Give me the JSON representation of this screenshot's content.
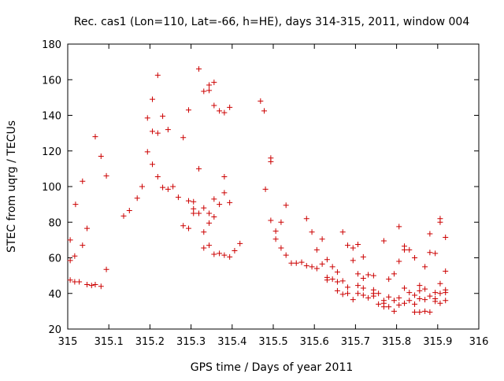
{
  "chart_data": {
    "type": "scatter",
    "title": "Rec. cas1 (Lon=110, Lat=-66, h=HE), days 314-315, 2011, window 004",
    "xlabel": "GPS time / Days of year 2011",
    "ylabel": "STEC from uqrg / TECUs",
    "xlim": [
      315,
      316
    ],
    "ylim": [
      20,
      180
    ],
    "xticks": [
      315,
      315.1,
      315.2,
      315.3,
      315.4,
      315.5,
      315.6,
      315.7,
      315.8,
      315.9,
      316
    ],
    "xtick_labels": [
      "315",
      "315.1",
      "315.2",
      "315.3",
      "315.4",
      "315.5",
      "315.6",
      "315.7",
      "315.8",
      "315.9",
      "316"
    ],
    "yticks": [
      20,
      40,
      60,
      80,
      100,
      120,
      140,
      160,
      180
    ],
    "ytick_labels": [
      "20",
      "40",
      "60",
      "80",
      "100",
      "120",
      "140",
      "160",
      "180"
    ],
    "grid": false,
    "marker": "plus",
    "marker_color": "#cc0000",
    "points": [
      [
        315.006,
        70
      ],
      [
        315.006,
        58.5
      ],
      [
        315.006,
        47.5
      ],
      [
        315.017,
        61
      ],
      [
        315.017,
        46.5
      ],
      [
        315.019,
        90
      ],
      [
        315.028,
        46.5
      ],
      [
        315.036,
        103
      ],
      [
        315.036,
        67
      ],
      [
        315.047,
        45
      ],
      [
        315.047,
        76.5
      ],
      [
        315.058,
        44.5
      ],
      [
        315.067,
        128
      ],
      [
        315.067,
        45
      ],
      [
        315.081,
        117
      ],
      [
        315.081,
        44
      ],
      [
        315.094,
        106
      ],
      [
        315.094,
        53.5
      ],
      [
        315.136,
        83.5
      ],
      [
        315.15,
        86.5
      ],
      [
        315.169,
        93.5
      ],
      [
        315.181,
        100
      ],
      [
        315.194,
        138.5
      ],
      [
        315.194,
        119.5
      ],
      [
        315.206,
        149
      ],
      [
        315.206,
        131
      ],
      [
        315.206,
        112.5
      ],
      [
        315.219,
        162.5
      ],
      [
        315.219,
        130
      ],
      [
        315.219,
        105.5
      ],
      [
        315.231,
        139.5
      ],
      [
        315.231,
        99.5
      ],
      [
        315.244,
        132
      ],
      [
        315.244,
        98.5
      ],
      [
        315.256,
        100
      ],
      [
        315.269,
        94
      ],
      [
        315.281,
        127.5
      ],
      [
        315.281,
        78
      ],
      [
        315.294,
        143
      ],
      [
        315.294,
        92
      ],
      [
        315.294,
        76.5
      ],
      [
        315.306,
        87.5
      ],
      [
        315.306,
        85
      ],
      [
        315.306,
        91.5
      ],
      [
        315.319,
        166
      ],
      [
        315.319,
        110
      ],
      [
        315.319,
        85
      ],
      [
        315.331,
        153.5
      ],
      [
        315.331,
        88
      ],
      [
        315.331,
        74.5
      ],
      [
        315.331,
        65.5
      ],
      [
        315.344,
        157
      ],
      [
        315.344,
        154
      ],
      [
        315.344,
        85
      ],
      [
        315.344,
        79.5
      ],
      [
        315.344,
        67
      ],
      [
        315.356,
        158.5
      ],
      [
        315.356,
        145.5
      ],
      [
        315.356,
        93
      ],
      [
        315.356,
        83
      ],
      [
        315.356,
        62
      ],
      [
        315.369,
        142.5
      ],
      [
        315.369,
        90
      ],
      [
        315.369,
        62.5
      ],
      [
        315.381,
        141.5
      ],
      [
        315.381,
        105.5
      ],
      [
        315.381,
        96.5
      ],
      [
        315.381,
        61.5
      ],
      [
        315.394,
        144.5
      ],
      [
        315.394,
        91
      ],
      [
        315.394,
        60.5
      ],
      [
        315.406,
        64
      ],
      [
        315.419,
        68
      ],
      [
        315.469,
        148
      ],
      [
        315.478,
        142.5
      ],
      [
        315.481,
        98.5
      ],
      [
        315.494,
        116
      ],
      [
        315.494,
        114
      ],
      [
        315.494,
        81
      ],
      [
        315.506,
        75
      ],
      [
        315.506,
        70.5
      ],
      [
        315.519,
        65.5
      ],
      [
        315.519,
        80
      ],
      [
        315.531,
        89.5
      ],
      [
        315.531,
        61.5
      ],
      [
        315.544,
        57
      ],
      [
        315.556,
        57
      ],
      [
        315.569,
        57.5
      ],
      [
        315.581,
        82
      ],
      [
        315.581,
        55.5
      ],
      [
        315.594,
        74.5
      ],
      [
        315.594,
        55
      ],
      [
        315.606,
        64.5
      ],
      [
        315.606,
        54
      ],
      [
        315.619,
        70.5
      ],
      [
        315.619,
        56.5
      ],
      [
        315.631,
        59
      ],
      [
        315.631,
        49
      ],
      [
        315.644,
        55
      ],
      [
        315.644,
        48
      ],
      [
        315.656,
        52
      ],
      [
        315.656,
        41.5
      ],
      [
        315.669,
        74.5
      ],
      [
        315.669,
        47
      ],
      [
        315.669,
        39.5
      ],
      [
        315.681,
        67
      ],
      [
        315.681,
        43.5
      ],
      [
        315.681,
        40
      ],
      [
        315.694,
        65.5
      ],
      [
        315.694,
        58.5
      ],
      [
        315.694,
        36.5
      ],
      [
        315.706,
        67.5
      ],
      [
        315.706,
        51
      ],
      [
        315.706,
        44.5
      ],
      [
        315.706,
        40
      ],
      [
        315.719,
        60.5
      ],
      [
        315.719,
        48.5
      ],
      [
        315.719,
        43
      ],
      [
        315.719,
        39
      ],
      [
        315.731,
        50.5
      ],
      [
        315.731,
        37.5
      ],
      [
        315.744,
        50
      ],
      [
        315.744,
        42
      ],
      [
        315.744,
        40
      ],
      [
        315.756,
        40
      ],
      [
        315.756,
        34
      ],
      [
        315.769,
        69.5
      ],
      [
        315.769,
        36
      ],
      [
        315.769,
        32.5
      ],
      [
        315.781,
        48
      ],
      [
        315.781,
        38
      ],
      [
        315.781,
        32.5
      ],
      [
        315.794,
        51
      ],
      [
        315.794,
        36
      ],
      [
        315.794,
        30
      ],
      [
        315.806,
        77.5
      ],
      [
        315.806,
        58
      ],
      [
        315.806,
        37.5
      ],
      [
        315.806,
        33.5
      ],
      [
        315.819,
        66.5
      ],
      [
        315.819,
        64.5
      ],
      [
        315.819,
        43
      ],
      [
        315.819,
        34.5
      ],
      [
        315.831,
        64.5
      ],
      [
        315.831,
        40.5
      ],
      [
        315.831,
        36
      ],
      [
        315.844,
        60
      ],
      [
        315.844,
        39
      ],
      [
        315.844,
        34
      ],
      [
        315.844,
        29.5
      ],
      [
        315.856,
        44.5
      ],
      [
        315.856,
        37
      ],
      [
        315.856,
        29.5
      ],
      [
        315.869,
        55
      ],
      [
        315.869,
        42.5
      ],
      [
        315.869,
        36.5
      ],
      [
        315.869,
        30
      ],
      [
        315.881,
        63
      ],
      [
        315.881,
        38.5
      ],
      [
        315.881,
        29.5
      ],
      [
        315.894,
        62.5
      ],
      [
        315.894,
        40.5
      ],
      [
        315.894,
        35.5
      ],
      [
        315.906,
        82
      ],
      [
        315.906,
        80
      ],
      [
        315.906,
        45.5
      ],
      [
        315.906,
        40
      ],
      [
        315.906,
        34.5
      ],
      [
        315.919,
        71.5
      ],
      [
        315.919,
        52.5
      ],
      [
        315.919,
        42
      ],
      [
        315.919,
        36
      ],
      [
        315.881,
        73.5
      ],
      [
        315.856,
        41.5
      ],
      [
        315.894,
        37
      ],
      [
        315.769,
        34.5
      ],
      [
        315.744,
        38.5
      ],
      [
        315.631,
        47.5
      ],
      [
        315.656,
        46.5
      ],
      [
        315.919,
        40.5
      ]
    ]
  }
}
